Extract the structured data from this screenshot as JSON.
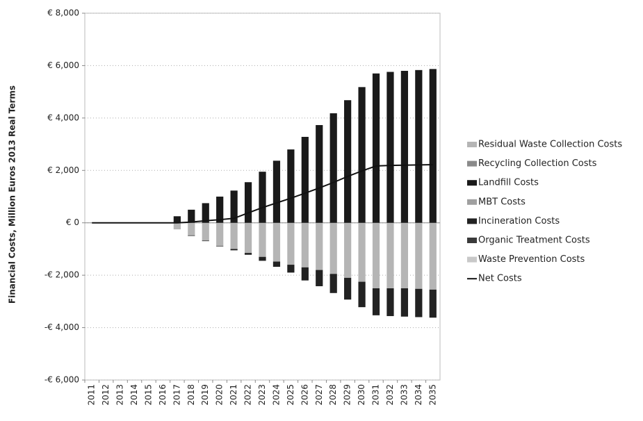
{
  "chart_data": {
    "type": "stacked_bar_line",
    "y_label": "Financial Costs, Million Euros 2013 Real Terms",
    "categories": [
      "2011",
      "2012",
      "2013",
      "2014",
      "2015",
      "2016",
      "2017",
      "2018",
      "2019",
      "2020",
      "2021",
      "2022",
      "2023",
      "2024",
      "2025",
      "2026",
      "2027",
      "2028",
      "2029",
      "2030",
      "2031",
      "2032",
      "2033",
      "2034",
      "2035"
    ],
    "ylim": [
      -6000,
      8000
    ],
    "yticks": [
      {
        "value": 8000,
        "label": "€ 8,000"
      },
      {
        "value": 6000,
        "label": "€ 6,000"
      },
      {
        "value": 4000,
        "label": "€ 4,000"
      },
      {
        "value": 2000,
        "label": "€ 2,000"
      },
      {
        "value": 0,
        "label": "€ 0"
      },
      {
        "value": -2000,
        "label": "-€ 2,000"
      },
      {
        "value": -4000,
        "label": "-€ 4,000"
      },
      {
        "value": -6000,
        "label": "-€ 6,000"
      }
    ],
    "grid": true,
    "legend": "right",
    "series": [
      {
        "name": "Residual Waste Collection Costs",
        "color": "#b5b5b5",
        "values": [
          0,
          0,
          0,
          0,
          0,
          0,
          -250,
          -480,
          -680,
          -880,
          -1000,
          -1150,
          -1300,
          -1480,
          -1600,
          -1700,
          -1800,
          -1950,
          -2100,
          -2250,
          -2500,
          -2500,
          -2500,
          -2520,
          -2550
        ]
      },
      {
        "name": "Recycling Collection Costs",
        "color": "#8a8a8a",
        "values": [
          0,
          0,
          0,
          0,
          0,
          0,
          0,
          0,
          0,
          0,
          0,
          0,
          0,
          0,
          0,
          0,
          0,
          0,
          0,
          0,
          0,
          0,
          0,
          0,
          0
        ]
      },
      {
        "name": "Landfill Costs",
        "color": "#1a1a1a",
        "values": [
          0,
          0,
          0,
          0,
          0,
          0,
          250,
          500,
          750,
          1000,
          1230,
          1550,
          1950,
          2370,
          2800,
          3280,
          3730,
          4180,
          4680,
          5180,
          5700,
          5760,
          5800,
          5830,
          5870
        ]
      },
      {
        "name": "MBT Costs",
        "color": "#a0a0a0",
        "values": [
          0,
          0,
          0,
          0,
          0,
          0,
          0,
          0,
          0,
          0,
          0,
          0,
          0,
          0,
          0,
          0,
          0,
          0,
          0,
          0,
          0,
          0,
          0,
          0,
          0
        ]
      },
      {
        "name": "Incineration Costs",
        "color": "#222222",
        "values": [
          0,
          0,
          0,
          0,
          0,
          0,
          0,
          -20,
          -20,
          -20,
          -50,
          -70,
          -150,
          -200,
          -300,
          -500,
          -620,
          -730,
          -830,
          -970,
          -1030,
          -1060,
          -1080,
          -1080,
          -1070
        ]
      },
      {
        "name": "Organic Treatment Costs",
        "color": "#3a3a3a",
        "values": [
          0,
          0,
          0,
          0,
          0,
          0,
          0,
          0,
          0,
          0,
          0,
          0,
          0,
          0,
          0,
          0,
          0,
          0,
          0,
          0,
          0,
          0,
          0,
          0,
          0
        ]
      },
      {
        "name": "Waste Prevention Costs",
        "color": "#c8c8c8",
        "values": [
          0,
          0,
          0,
          0,
          0,
          0,
          0,
          0,
          0,
          0,
          0,
          0,
          0,
          0,
          0,
          0,
          0,
          0,
          0,
          0,
          0,
          0,
          0,
          0,
          0
        ]
      },
      {
        "name": "Net Costs",
        "type": "line",
        "color": "#111111",
        "values": [
          0,
          0,
          0,
          0,
          0,
          0,
          0,
          30,
          80,
          120,
          170,
          380,
          580,
          760,
          940,
          1130,
          1330,
          1540,
          1770,
          1980,
          2170,
          2190,
          2200,
          2210,
          2220
        ]
      }
    ]
  }
}
